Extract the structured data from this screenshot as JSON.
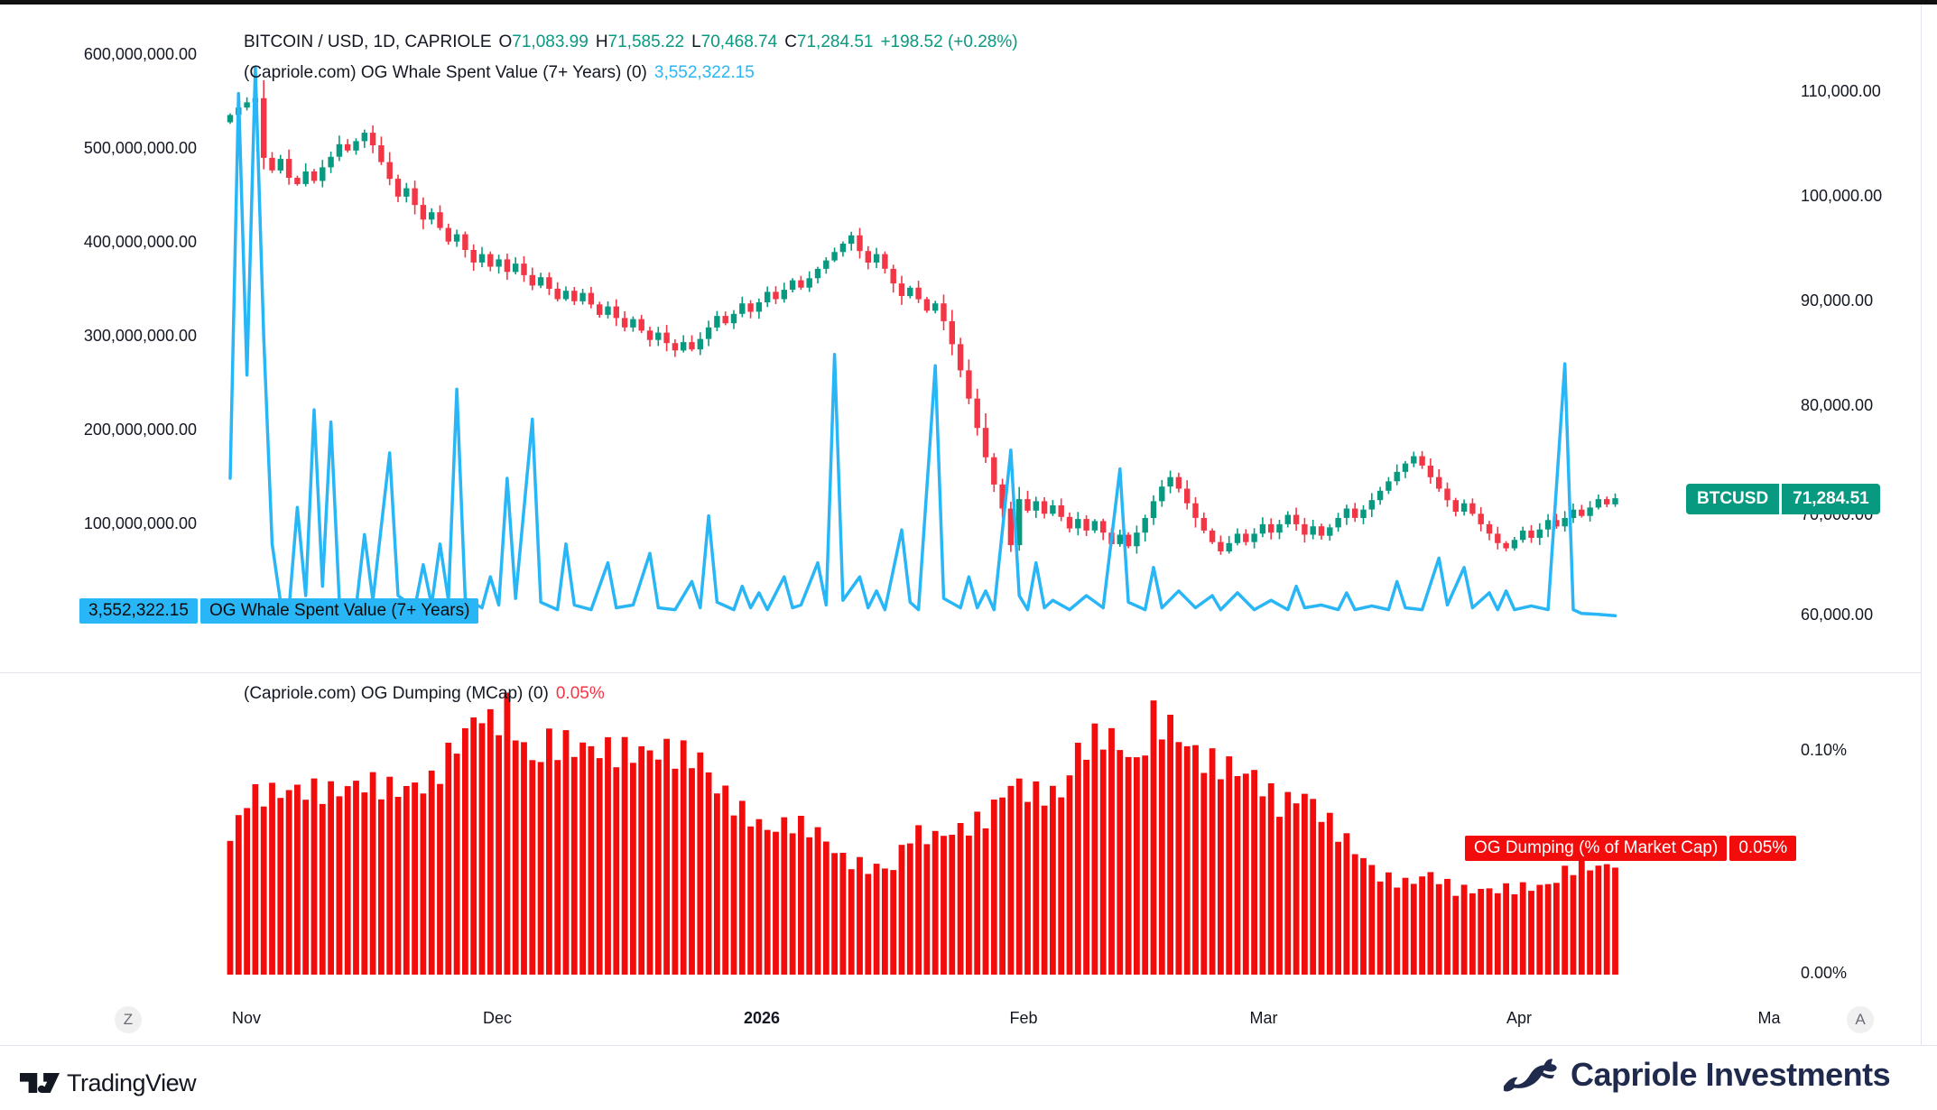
{
  "header": {
    "symbol_title": "BITCOIN / USD, 1D, CAPRIOLE",
    "ohlc": {
      "o_label": "O",
      "o": "71,083.99",
      "h_label": "H",
      "h": "71,585.22",
      "l_label": "L",
      "l": "70,468.74",
      "c_label": "C",
      "c": "71,284.51",
      "change": "+198.52 (+0.28%)"
    },
    "whale_legend_title": "(Capriole.com) OG Whale Spent Value (7+ Years) (0)",
    "whale_legend_value": "3,552,322.15",
    "dump_legend_title": "(Capriole.com) OG Dumping (MCap) (0)",
    "dump_legend_value": "0.05%"
  },
  "axes": {
    "left_ticks": [
      "600,000,000.00",
      "500,000,000.00",
      "400,000,000.00",
      "300,000,000.00",
      "200,000,000.00",
      "100,000,000.00"
    ],
    "right_ticks": [
      "110,000.00",
      "100,000.00",
      "90,000.00",
      "80,000.00",
      "70,000.00",
      "60,000.00"
    ],
    "lower_tick_top": "0.10%",
    "lower_tick_bottom": "0.00%",
    "time_ticks": [
      "Nov",
      "Dec",
      "2026",
      "Feb",
      "Mar",
      "Apr",
      "Ma"
    ],
    "scroll_left_label": "Z",
    "scroll_right_label": "A"
  },
  "badges": {
    "symbol": "BTCUSD",
    "last_price": "71,284.51",
    "whale_value": "3,552,322.15",
    "whale_name": "OG Whale Spent Value (7+ Years)",
    "dump_name": "OG Dumping (% of Market Cap)",
    "dump_value": "0.05%"
  },
  "footer": {
    "tradingview": "TradingView",
    "capriole": "Capriole Investments"
  },
  "chart_data": [
    {
      "type": "candlestick",
      "name": "BTCUSD 1D",
      "up_color": "#089981",
      "down_color": "#F23645",
      "y_axis": {
        "side": "right",
        "ticks": [
          110000,
          100000,
          90000,
          80000,
          70000,
          60000
        ]
      },
      "x_range_months": [
        "Nov",
        "Dec",
        "2026",
        "Feb",
        "Mar",
        "Apr"
      ],
      "open_first": 107.2,
      "unit": "USD thousands",
      "last_close": 71284.51,
      "closes": [
        107.9,
        108.6,
        109.1,
        109.5,
        103.8,
        102.6,
        103.7,
        101.9,
        101.3,
        102.5,
        101.6,
        102.9,
        103.9,
        105.1,
        104.5,
        105.4,
        106.2,
        105.0,
        103.4,
        101.8,
        100.1,
        100.9,
        99.3,
        97.9,
        98.6,
        97.1,
        95.8,
        96.5,
        95.0,
        93.8,
        94.6,
        93.4,
        94.1,
        92.9,
        93.7,
        92.6,
        91.6,
        92.4,
        91.3,
        90.3,
        91.1,
        90.1,
        90.9,
        89.8,
        88.8,
        89.6,
        88.5,
        87.6,
        88.4,
        87.3,
        86.4,
        87.1,
        86.1,
        85.4,
        86.2,
        85.5,
        86.5,
        87.6,
        88.7,
        88.0,
        88.9,
        89.9,
        89.1,
        90.0,
        91.0,
        90.3,
        91.2,
        92.1,
        91.4,
        92.3,
        93.2,
        94.0,
        94.8,
        95.6,
        96.4,
        94.9,
        93.8,
        94.6,
        93.2,
        91.8,
        90.6,
        91.4,
        90.3,
        89.2,
        89.9,
        88.2,
        86.0,
        83.5,
        80.8,
        78.0,
        75.2,
        72.6,
        70.3,
        66.8,
        71.2,
        70.1,
        71.0,
        69.8,
        70.6,
        69.5,
        68.4,
        69.3,
        68.2,
        69.1,
        68.0,
        66.9,
        67.8,
        66.7,
        68.0,
        69.4,
        71.0,
        72.4,
        73.3,
        72.2,
        70.8,
        69.4,
        68.2,
        67.1,
        66.2,
        67.0,
        67.9,
        67.1,
        67.9,
        68.8,
        68.0,
        68.8,
        69.7,
        68.8,
        67.8,
        68.6,
        67.7,
        68.5,
        69.4,
        70.3,
        69.4,
        70.2,
        71.1,
        72.0,
        72.9,
        73.8,
        74.6,
        75.3,
        74.4,
        73.3,
        72.2,
        71.1,
        70.0,
        70.8,
        69.8,
        68.8,
        67.9,
        67.0,
        66.5,
        67.3,
        68.2,
        67.5,
        68.3,
        69.2,
        68.6,
        69.4,
        70.2,
        69.6,
        70.4,
        71.2,
        70.7,
        71.28451
      ]
    },
    {
      "type": "line",
      "name": "OG Whale Spent Value (7+ Years)",
      "color": "#29B6F6",
      "unit": "USD millions",
      "current": 3552322.15,
      "y_axis": {
        "side": "left",
        "ticks": [
          600000000,
          500000000,
          400000000,
          300000000,
          200000000,
          100000000
        ]
      },
      "points": [
        [
          0,
          150
        ],
        [
          1,
          560
        ],
        [
          2,
          260
        ],
        [
          3,
          588
        ],
        [
          4,
          300
        ],
        [
          5,
          80
        ],
        [
          6,
          18
        ],
        [
          7,
          10
        ],
        [
          8,
          119
        ],
        [
          9,
          25
        ],
        [
          10,
          223
        ],
        [
          11,
          35
        ],
        [
          12,
          210
        ],
        [
          13,
          20
        ],
        [
          15,
          12
        ],
        [
          16,
          90
        ],
        [
          17,
          20
        ],
        [
          19,
          177
        ],
        [
          20,
          25
        ],
        [
          22,
          12
        ],
        [
          23,
          58
        ],
        [
          24,
          15
        ],
        [
          25,
          80
        ],
        [
          26,
          20
        ],
        [
          27,
          245
        ],
        [
          28,
          22
        ],
        [
          30,
          12
        ],
        [
          31,
          45
        ],
        [
          32,
          15
        ],
        [
          33,
          150
        ],
        [
          34,
          22
        ],
        [
          36,
          213
        ],
        [
          37,
          18
        ],
        [
          39,
          10
        ],
        [
          40,
          80
        ],
        [
          41,
          15
        ],
        [
          43,
          10
        ],
        [
          45,
          60
        ],
        [
          46,
          12
        ],
        [
          48,
          15
        ],
        [
          50,
          70
        ],
        [
          51,
          12
        ],
        [
          53,
          10
        ],
        [
          55,
          40
        ],
        [
          56,
          12
        ],
        [
          57,
          110
        ],
        [
          58,
          18
        ],
        [
          60,
          10
        ],
        [
          61,
          35
        ],
        [
          62,
          12
        ],
        [
          63,
          28
        ],
        [
          64,
          10
        ],
        [
          66,
          45
        ],
        [
          67,
          12
        ],
        [
          68,
          15
        ],
        [
          70,
          60
        ],
        [
          71,
          15
        ],
        [
          72,
          282
        ],
        [
          73,
          20
        ],
        [
          75,
          45
        ],
        [
          76,
          12
        ],
        [
          77,
          30
        ],
        [
          78,
          10
        ],
        [
          80,
          95
        ],
        [
          81,
          18
        ],
        [
          82,
          10
        ],
        [
          84,
          270
        ],
        [
          85,
          22
        ],
        [
          87,
          12
        ],
        [
          88,
          45
        ],
        [
          89,
          12
        ],
        [
          90,
          30
        ],
        [
          91,
          10
        ],
        [
          93,
          180
        ],
        [
          94,
          25
        ],
        [
          95,
          10
        ],
        [
          96,
          60
        ],
        [
          97,
          12
        ],
        [
          98,
          20
        ],
        [
          100,
          10
        ],
        [
          102,
          25
        ],
        [
          104,
          12
        ],
        [
          106,
          160
        ],
        [
          107,
          18
        ],
        [
          109,
          10
        ],
        [
          110,
          55
        ],
        [
          111,
          12
        ],
        [
          113,
          30
        ],
        [
          115,
          12
        ],
        [
          117,
          25
        ],
        [
          118,
          10
        ],
        [
          120,
          28
        ],
        [
          122,
          10
        ],
        [
          124,
          20
        ],
        [
          126,
          10
        ],
        [
          127,
          35
        ],
        [
          128,
          12
        ],
        [
          130,
          15
        ],
        [
          132,
          10
        ],
        [
          133,
          28
        ],
        [
          134,
          10
        ],
        [
          136,
          14
        ],
        [
          138,
          10
        ],
        [
          139,
          40
        ],
        [
          140,
          12
        ],
        [
          142,
          10
        ],
        [
          144,
          65
        ],
        [
          145,
          15
        ],
        [
          147,
          55
        ],
        [
          148,
          12
        ],
        [
          150,
          28
        ],
        [
          151,
          10
        ],
        [
          152,
          30
        ],
        [
          153,
          10
        ],
        [
          155,
          14
        ],
        [
          157,
          10
        ],
        [
          159,
          272
        ],
        [
          160,
          10
        ],
        [
          161,
          6
        ],
        [
          163,
          5
        ],
        [
          165,
          3.552322
        ]
      ]
    },
    {
      "type": "bar",
      "name": "OG Dumping (% of Market Cap)",
      "color": "#F20C0C",
      "unit": "percent of market cap",
      "current": 0.05,
      "y_axis": {
        "side": "right",
        "ticks_pct": [
          0.1,
          0.05,
          0.0
        ]
      },
      "points": [
        [
          0,
          0.06
        ],
        [
          2,
          0.079
        ],
        [
          4,
          0.081
        ],
        [
          8,
          0.083
        ],
        [
          12,
          0.082
        ],
        [
          16,
          0.086
        ],
        [
          20,
          0.083
        ],
        [
          24,
          0.086
        ],
        [
          26,
          0.098
        ],
        [
          28,
          0.109
        ],
        [
          30,
          0.118
        ],
        [
          31,
          0.112
        ],
        [
          33,
          0.119
        ],
        [
          34,
          0.11
        ],
        [
          36,
          0.095
        ],
        [
          38,
          0.104
        ],
        [
          42,
          0.102
        ],
        [
          46,
          0.1
        ],
        [
          52,
          0.1
        ],
        [
          56,
          0.097
        ],
        [
          58,
          0.084
        ],
        [
          61,
          0.073
        ],
        [
          64,
          0.065
        ],
        [
          67,
          0.068
        ],
        [
          70,
          0.064
        ],
        [
          73,
          0.052
        ],
        [
          76,
          0.048
        ],
        [
          79,
          0.048
        ],
        [
          81,
          0.063
        ],
        [
          84,
          0.062
        ],
        [
          87,
          0.065
        ],
        [
          90,
          0.07
        ],
        [
          93,
          0.086
        ],
        [
          96,
          0.081
        ],
        [
          99,
          0.081
        ],
        [
          101,
          0.1
        ],
        [
          104,
          0.108
        ],
        [
          106,
          0.103
        ],
        [
          108,
          0.094
        ],
        [
          110,
          0.115
        ],
        [
          112,
          0.111
        ],
        [
          114,
          0.103
        ],
        [
          116,
          0.096
        ],
        [
          119,
          0.093
        ],
        [
          122,
          0.089
        ],
        [
          125,
          0.076
        ],
        [
          128,
          0.081
        ],
        [
          131,
          0.068
        ],
        [
          134,
          0.056
        ],
        [
          137,
          0.044
        ],
        [
          140,
          0.041
        ],
        [
          143,
          0.045
        ],
        [
          146,
          0.038
        ],
        [
          150,
          0.038
        ],
        [
          154,
          0.039
        ],
        [
          157,
          0.04
        ],
        [
          159,
          0.046
        ],
        [
          161,
          0.05
        ],
        [
          163,
          0.048
        ],
        [
          165,
          0.05
        ]
      ]
    }
  ]
}
